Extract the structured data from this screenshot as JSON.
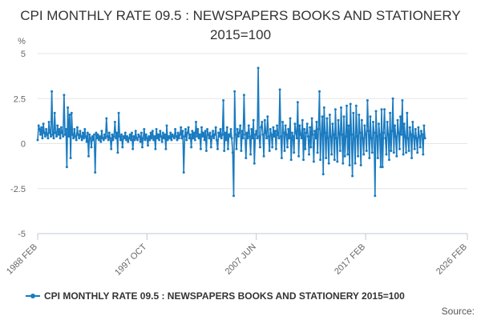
{
  "chart_data": {
    "type": "line",
    "title": "CPI MONTHLY RATE 09.5 : NEWSPAPERS BOOKS AND STATIONERY 2015=100",
    "ylabel": "%",
    "ylim": [
      -5,
      5
    ],
    "yticks": [
      5,
      2.5,
      0,
      -2.5,
      -5
    ],
    "ytick_labels": [
      "5",
      "2.5",
      "0",
      "-2.5",
      "-5"
    ],
    "xlim": [
      1988.0833,
      2026.0833
    ],
    "xticks": [
      {
        "label": "1988 FEB",
        "x": 1988.0833
      },
      {
        "label": "1997 OCT",
        "x": 1997.75
      },
      {
        "label": "2007 JUN",
        "x": 2007.4167
      },
      {
        "label": "2017 FEB",
        "x": 2017.0833
      },
      {
        "label": "2026 FEB",
        "x": 2026.0833
      }
    ],
    "series": [
      {
        "name": "CPI MONTHLY RATE 09.5 : NEWSPAPERS BOOKS AND STATIONERY 2015=100",
        "color": "#1a7bc0",
        "x_start": 1988.0833,
        "x_step": 0.083333,
        "values": [
          0.2,
          1.0,
          0.8,
          0.5,
          0.9,
          0.3,
          1.1,
          0.6,
          0.4,
          0.8,
          0.5,
          0.3,
          1.2,
          0.6,
          0.4,
          2.9,
          0.5,
          0.3,
          1.7,
          0.6,
          0.4,
          1.0,
          0.5,
          0.8,
          0.3,
          0.9,
          0.6,
          0.4,
          2.7,
          0.5,
          0.8,
          -1.3,
          2.0,
          0.4,
          1.6,
          -0.8,
          1.7,
          0.5,
          0.3,
          0.8,
          0.4,
          0.2,
          0.9,
          0.5,
          0.3,
          0.7,
          0.4,
          0.2,
          0.6,
          0.3,
          0.8,
          0.4,
          0.1,
          0.6,
          -0.7,
          0.5,
          0.3,
          -0.2,
          0.4,
          0.2,
          0.5,
          -1.6,
          0.6,
          0.3,
          0.5,
          0.2,
          0.4,
          0.1,
          0.7,
          0.3,
          0.2,
          0.5,
          0.3,
          1.4,
          0.4,
          0.2,
          0.6,
          0.3,
          -0.3,
          0.5,
          0.2,
          0.4,
          1.2,
          0.3,
          0.6,
          -0.5,
          1.7,
          0.4,
          0.2,
          0.5,
          -0.2,
          0.4,
          0.3,
          0.6,
          0.2,
          0.4,
          0.1,
          0.3,
          0.5,
          0.2,
          0.6,
          -0.3,
          0.4,
          0.2,
          0.7,
          0.3,
          0.2,
          0.5,
          0.4,
          0.1,
          0.6,
          -0.2,
          0.3,
          0.8,
          0.2,
          0.5,
          0.3,
          -0.1,
          0.4,
          0.2,
          0.6,
          0.3,
          0.7,
          0.2,
          0.4,
          -0.3,
          0.8,
          0.3,
          0.5,
          0.2,
          0.7,
          0.4,
          0.1,
          0.6,
          0.3,
          0.5,
          -0.3,
          1.0,
          0.2,
          0.4,
          0.3,
          0.6,
          0.2,
          0.5,
          0.4,
          0.3,
          0.8,
          0.4,
          0.2,
          0.6,
          0.3,
          0.5,
          0.9,
          0.3,
          0.7,
          -1.6,
          0.4,
          0.8,
          0.2,
          0.6,
          0.9,
          0.3,
          0.5,
          -0.2,
          0.7,
          0.3,
          0.6,
          0.2,
          1.2,
          0.4,
          0.8,
          0.3,
          0.5,
          -0.3,
          0.9,
          0.4,
          0.6,
          0.2,
          0.7,
          -0.4,
          0.8,
          0.5,
          0.3,
          0.6,
          -0.2,
          0.4,
          0.7,
          0.3,
          0.5,
          0.9,
          0.2,
          -0.3,
          0.6,
          0.4,
          0.8,
          0.3,
          0.5,
          2.4,
          -0.4,
          0.6,
          0.2,
          0.9,
          -0.3,
          0.5,
          0.4,
          0.8,
          0.3,
          -0.5,
          -2.9,
          2.9,
          0.5,
          -0.3,
          0.8,
          0.4,
          0.6,
          1.0,
          -0.4,
          0.7,
          0.3,
          2.7,
          0.5,
          -0.8,
          0.6,
          0.3,
          1.0,
          0.4,
          -0.6,
          0.8,
          0.3,
          1.3,
          -1.1,
          0.5,
          0.7,
          0.3,
          4.2,
          0.4,
          -0.2,
          0.9,
          1.2,
          0.5,
          -0.7,
          1.3,
          0.6,
          0.3,
          1.5,
          0.4,
          -0.4,
          0.8,
          0.5,
          -0.2,
          0.9,
          0.4,
          0.7,
          -0.3,
          1.0,
          0.5,
          0.3,
          3.0,
          0.4,
          -0.8,
          1.2,
          0.6,
          -0.4,
          1.0,
          0.5,
          -0.2,
          0.8,
          0.3,
          1.4,
          -0.9,
          0.6,
          0.4,
          -0.5,
          1.1,
          0.6,
          0.3,
          2.3,
          -0.7,
          1.0,
          0.5,
          0.3,
          1.3,
          -0.9,
          0.8,
          -0.3,
          0.6,
          1.1,
          0.4,
          -0.6,
          0.9,
          -0.2,
          1.4,
          0.5,
          -1.0,
          0.7,
          0.3,
          1.2,
          -0.5,
          0.8,
          2.9,
          -0.9,
          0.5,
          1.5,
          -1.7,
          2.0,
          0.6,
          -0.8,
          1.4,
          0.3,
          -1.1,
          1.6,
          0.4,
          -0.6,
          1.1,
          0.5,
          -0.9,
          1.9,
          0.3,
          -1.0,
          1.3,
          0.6,
          -0.4,
          2.0,
          0.5,
          -1.1,
          1.5,
          -0.7,
          0.4,
          2.1,
          -0.6,
          1.0,
          -1.2,
          2.2,
          0.5,
          -1.8,
          1.7,
          0.3,
          -1.1,
          2.1,
          0.4,
          -0.7,
          1.6,
          0.6,
          -1.2,
          1.3,
          0.3,
          -0.6,
          1.0,
          0.5,
          -0.4,
          2.4,
          0.7,
          -0.8,
          1.5,
          0.3,
          -0.5,
          1.2,
          0.6,
          -2.9,
          1.8,
          0.4,
          -0.8,
          1.1,
          0.5,
          -1.3,
          1.9,
          -1.3,
          0.6,
          1.9,
          0.3,
          -0.6,
          1.2,
          0.5,
          -0.9,
          1.7,
          -0.4,
          0.7,
          2.5,
          -0.5,
          1.0,
          0.4,
          -0.7,
          1.3,
          0.6,
          -0.3,
          1.5,
          0.5,
          2.4,
          -0.6,
          1.1,
          0.4,
          -0.5,
          1.7,
          0.3,
          -0.4,
          0.9,
          0.5,
          -0.8,
          1.2,
          0.4,
          -0.3,
          0.8,
          0.3,
          -0.5,
          0.9,
          0.4,
          -0.2,
          0.7,
          0.5,
          -0.6,
          1.0,
          0.3
        ]
      }
    ],
    "legend_position": "bottom-left",
    "grid": true
  },
  "footer": {
    "legend_label": "CPI MONTHLY RATE 09.5 : NEWSPAPERS BOOKS AND STATIONERY 2015=100",
    "source_label": "Source:"
  }
}
